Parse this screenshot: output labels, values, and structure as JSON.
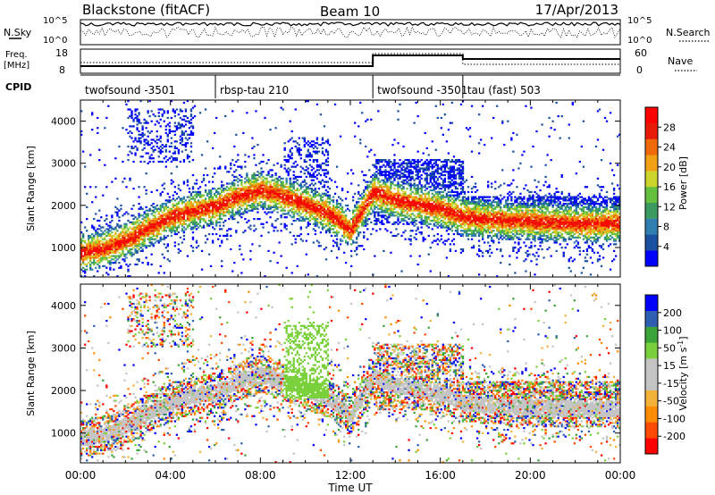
{
  "header": {
    "station": "Blackstone (fitACF)",
    "beam": "Beam 10",
    "date": "17/Apr/2013"
  },
  "noise_panel": {
    "left_label": "N.Sky",
    "right_label": "N.Search",
    "ticks_left": [
      "10^5",
      "10^0"
    ],
    "ticks_right": [
      "10^5",
      "10^0"
    ]
  },
  "freq_panel": {
    "left_label_line1": "Freq.",
    "left_label_line2": "[MHz]",
    "right_label": "Nave",
    "ticks_left": [
      "18",
      "8"
    ],
    "ticks_right": [
      "60",
      "0"
    ],
    "cpid_label": "CPID"
  },
  "cpid_segments": [
    {
      "label": "twofsound -3501",
      "start_hour": 0,
      "end_hour": 6
    },
    {
      "label": "rbsp-tau 210",
      "start_hour": 6,
      "end_hour": 13
    },
    {
      "label": "twofsound -3501",
      "start_hour": 13,
      "end_hour": 17
    },
    {
      "label": "tau (fast) 503",
      "start_hour": 17,
      "end_hour": 24
    }
  ],
  "colors": {
    "power_scale": [
      "#0000ff",
      "#1b4fa0",
      "#2f7fb0",
      "#3a9a60",
      "#66c040",
      "#cdd52c",
      "#f2a014",
      "#f06a0a",
      "#e81a0a",
      "#ff0000"
    ],
    "velocity_scale": [
      "#ff0000",
      "#ff4a00",
      "#ff8c00",
      "#f3b23a",
      "#c4c4c4",
      "#c4c4c4",
      "#7ad03a",
      "#3aa43a",
      "#2f5fb0",
      "#0000ff"
    ]
  },
  "chart_data": [
    {
      "type": "heatmap",
      "name": "power",
      "ylabel": "Slant Range [km]",
      "y_ticks": [
        "1000",
        "2000",
        "3000",
        "4000"
      ],
      "ylim": [
        300,
        4500
      ],
      "xlim": [
        0,
        24
      ],
      "colorbar_label": "Power [dB]",
      "colorbar_ticks": [
        "4",
        "8",
        "12",
        "16",
        "20",
        "24",
        "28"
      ],
      "colorbar_range": [
        0,
        30
      ],
      "dominant_echo_band_km": [
        [
          0,
          850
        ],
        [
          1,
          950
        ],
        [
          2,
          1150
        ],
        [
          3,
          1450
        ],
        [
          4,
          1700
        ],
        [
          5,
          1850
        ],
        [
          6,
          1950
        ],
        [
          7,
          2200
        ],
        [
          8,
          2350
        ],
        [
          9,
          2200
        ],
        [
          10,
          2000
        ],
        [
          11,
          1800
        ],
        [
          12,
          1400
        ],
        [
          13,
          2300
        ],
        [
          14,
          2100
        ],
        [
          15,
          2000
        ],
        [
          16,
          1900
        ],
        [
          17,
          1700
        ],
        [
          18,
          1650
        ],
        [
          20,
          1600
        ],
        [
          22,
          1550
        ],
        [
          24,
          1550
        ]
      ]
    },
    {
      "type": "heatmap",
      "name": "velocity",
      "ylabel": "Slant Range [km]",
      "y_ticks": [
        "1000",
        "2000",
        "3000",
        "4000"
      ],
      "ylim": [
        300,
        4500
      ],
      "xlim": [
        0,
        24
      ],
      "xlabel": "Time UT",
      "x_ticks": [
        "00:00",
        "04:00",
        "08:00",
        "12:00",
        "16:00",
        "20:00",
        "00:00"
      ],
      "colorbar_label": "Velocity [m s",
      "colorbar_label_exponent": "-1",
      "colorbar_label_close": "]",
      "colorbar_ticks": [
        "-200",
        "-100",
        "-50",
        "-15",
        "15",
        "50",
        "100",
        "200"
      ],
      "colorbar_range": [
        -250,
        250
      ]
    }
  ]
}
